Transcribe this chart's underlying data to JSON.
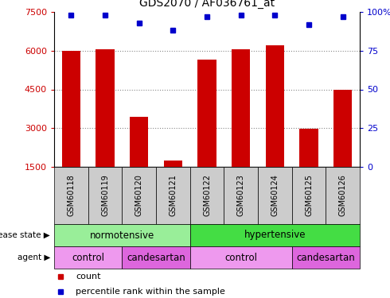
{
  "title": "GDS2070 / AF036761_at",
  "samples": [
    "GSM60118",
    "GSM60119",
    "GSM60120",
    "GSM60121",
    "GSM60122",
    "GSM60123",
    "GSM60124",
    "GSM60125",
    "GSM60126"
  ],
  "counts": [
    5980,
    6050,
    3450,
    1750,
    5650,
    6050,
    6200,
    2980,
    4500
  ],
  "percentiles": [
    98,
    98,
    93,
    88,
    97,
    98,
    98,
    92,
    97
  ],
  "ymin": 1500,
  "ymax": 7500,
  "yticks": [
    1500,
    3000,
    4500,
    6000,
    7500
  ],
  "right_yticks": [
    0,
    25,
    50,
    75,
    100
  ],
  "right_tick_labels": [
    "0",
    "25",
    "50",
    "75",
    "100%"
  ],
  "bar_color": "#cc0000",
  "dot_color": "#0000cc",
  "disease_state_groups": [
    {
      "label": "normotensive",
      "start": 0,
      "end": 4,
      "color": "#99ee99"
    },
    {
      "label": "hypertensive",
      "start": 4,
      "end": 9,
      "color": "#44dd44"
    }
  ],
  "agent_groups": [
    {
      "label": "control",
      "start": 0,
      "end": 2,
      "color": "#ee99ee"
    },
    {
      "label": "candesartan",
      "start": 2,
      "end": 4,
      "color": "#dd66dd"
    },
    {
      "label": "control",
      "start": 4,
      "end": 7,
      "color": "#ee99ee"
    },
    {
      "label": "candesartan",
      "start": 7,
      "end": 9,
      "color": "#dd66dd"
    }
  ],
  "disease_label": "disease state",
  "agent_label": "agent",
  "legend_count_label": "count",
  "legend_pct_label": "percentile rank within the sample",
  "grid_color": "#888888",
  "tick_color_left": "#cc0000",
  "tick_color_right": "#0000cc",
  "xtick_bg": "#cccccc",
  "fig_width": 4.9,
  "fig_height": 3.75,
  "dpi": 100
}
